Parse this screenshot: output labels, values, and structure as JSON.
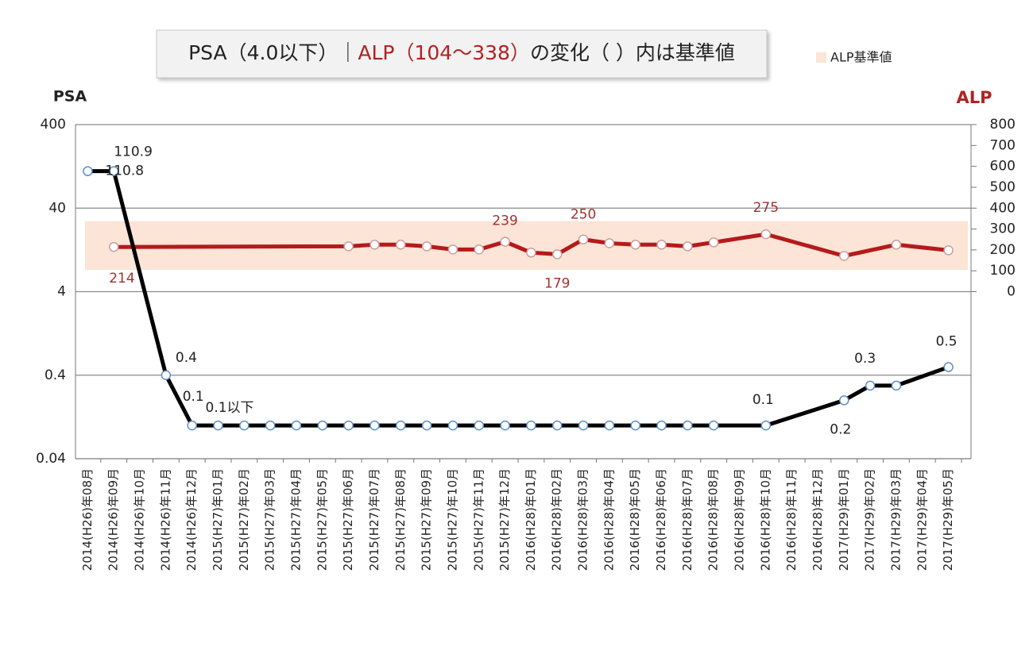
{
  "chart_data": {
    "type": "line",
    "title": [
      {
        "text": "PSA（4.0以下）｜",
        "color": "#222222"
      },
      {
        "text": "ALP（104～338）",
        "color": "#b22222"
      },
      {
        "text": "の変化（ ）内は基準値",
        "color": "#222222"
      }
    ],
    "y_label": "PSA",
    "y2_label": "ALP",
    "categories": [
      "2014(H26)年08月",
      "2014(H26)年09月",
      "2014(H26)年10月",
      "2014(H26)年11月",
      "2014(H26)年12月",
      "2015(H27)年01月",
      "2015(H27)年02月",
      "2015(H27)年03月",
      "2015(H27)年04月",
      "2015(H27)年05月",
      "2015(H27)年06月",
      "2015(H27)年07月",
      "2015(H27)年08月",
      "2015(H27)年09月",
      "2015(H27)年10月",
      "2015(H27)年11月",
      "2015(H27)年12月",
      "2016(H28)年01月",
      "2016(H28)年02月",
      "2016(H28)年03月",
      "2016(H28)年04月",
      "2016(H28)年05月",
      "2016(H28)年06月",
      "2016(H28)年07月",
      "2016(H28)年08月",
      "2016(H28)年09月",
      "2016(H28)年10月",
      "2016(H28)年11月",
      "2016(H28)年12月",
      "2017(H29)年01月",
      "2017(H29)年02月",
      "2017(H29)年03月",
      "2017(H29)年04月",
      "2017(H29)年05月"
    ],
    "series": [
      {
        "name": "PSA",
        "color": "#000000",
        "marker_edge_color": "#5b8fc7",
        "label_color": "#222222",
        "axis": "y",
        "values": [
          110.8,
          110.9,
          null,
          0.4,
          0.1,
          0.1,
          0.1,
          0.1,
          0.1,
          0.1,
          0.1,
          0.1,
          0.1,
          0.1,
          0.1,
          0.1,
          0.1,
          0.1,
          0.1,
          0.1,
          0.1,
          0.1,
          0.1,
          0.1,
          0.1,
          null,
          0.1,
          null,
          null,
          0.2,
          0.3,
          0.3,
          null,
          0.5
        ],
        "value_labels": [
          "110.8",
          "110.9",
          null,
          "0.4",
          "0.1",
          "0.1以下",
          null,
          null,
          null,
          null,
          null,
          null,
          null,
          null,
          null,
          null,
          null,
          null,
          null,
          null,
          null,
          null,
          null,
          null,
          null,
          null,
          "0.1",
          null,
          null,
          "0.2",
          "0.3",
          null,
          null,
          "0.5"
        ]
      },
      {
        "name": "ALP",
        "color": "#b51a1a",
        "marker_edge_color": "#c9a0a0",
        "label_color": "#a33030",
        "axis": "y2",
        "values": [
          null,
          214,
          null,
          null,
          null,
          null,
          null,
          null,
          null,
          null,
          217,
          225,
          225,
          217,
          202,
          202,
          239,
          187,
          179,
          250,
          232,
          225,
          225,
          217,
          236,
          null,
          275,
          null,
          null,
          171,
          null,
          225,
          null,
          198
        ],
        "value_labels": [
          null,
          "214",
          null,
          null,
          null,
          null,
          null,
          null,
          null,
          null,
          null,
          null,
          null,
          null,
          null,
          null,
          "239",
          null,
          "179",
          "250",
          null,
          null,
          null,
          null,
          null,
          null,
          "275",
          null,
          null,
          null,
          null,
          null,
          null,
          null
        ]
      }
    ],
    "reference_band": {
      "name": "ALP基準値",
      "range": [
        104,
        338
      ],
      "color": "#fce4d6",
      "axis": "y2"
    },
    "ylim": [
      0.04,
      400
    ],
    "ylog": true,
    "yticks": [
      0.04,
      0.4,
      4,
      40,
      400
    ],
    "y2lim": [
      -800,
      800
    ],
    "y2ticks": [
      0,
      100,
      200,
      300,
      400,
      500,
      600,
      700,
      800
    ],
    "grid": true,
    "connect_gaps": true,
    "legend": "top-right"
  }
}
